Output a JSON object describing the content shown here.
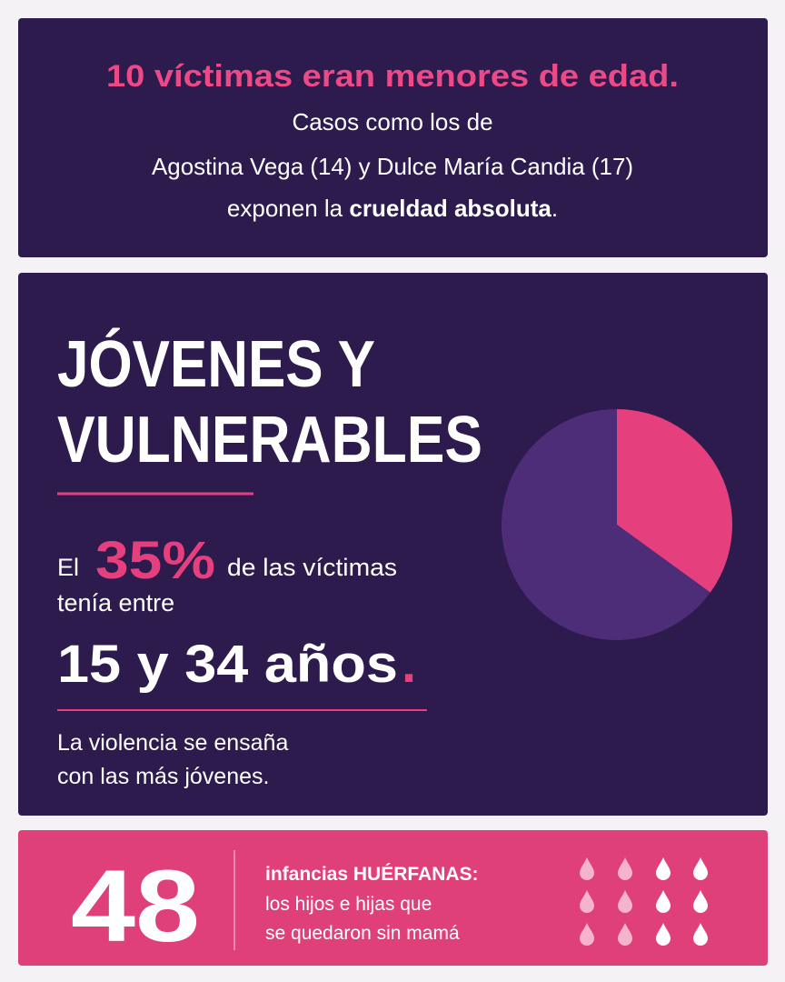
{
  "header": {
    "title": "10 víctimas eran menores de edad.",
    "lines": [
      "Casos como los de",
      "Agostina Vega (14) y Dulce María Candia (17)"
    ],
    "last_line": [
      "exponen la ",
      "crueldad absoluta",
      "."
    ]
  },
  "section": {
    "heading": [
      "JÓVENES Y",
      "VULNERABLES"
    ],
    "stat_prefix": "El",
    "stat": "35%",
    "stat_suffix": "de las víctimas",
    "stat_line2": "tenía entre",
    "range": "15 y 34 años",
    "range_dot": ".",
    "note": [
      "La violencia se ensaña",
      "con las más jóvenes."
    ],
    "pie": {
      "type": "pie",
      "values": [
        35,
        65
      ],
      "colors": [
        "#e63f7d",
        "#4e2d78"
      ]
    }
  },
  "footer": {
    "number": "48",
    "lines": [
      "infancias HUÉRFANAS:",
      "los hijos e hijas que",
      "se quedaron sin mamá"
    ]
  }
}
